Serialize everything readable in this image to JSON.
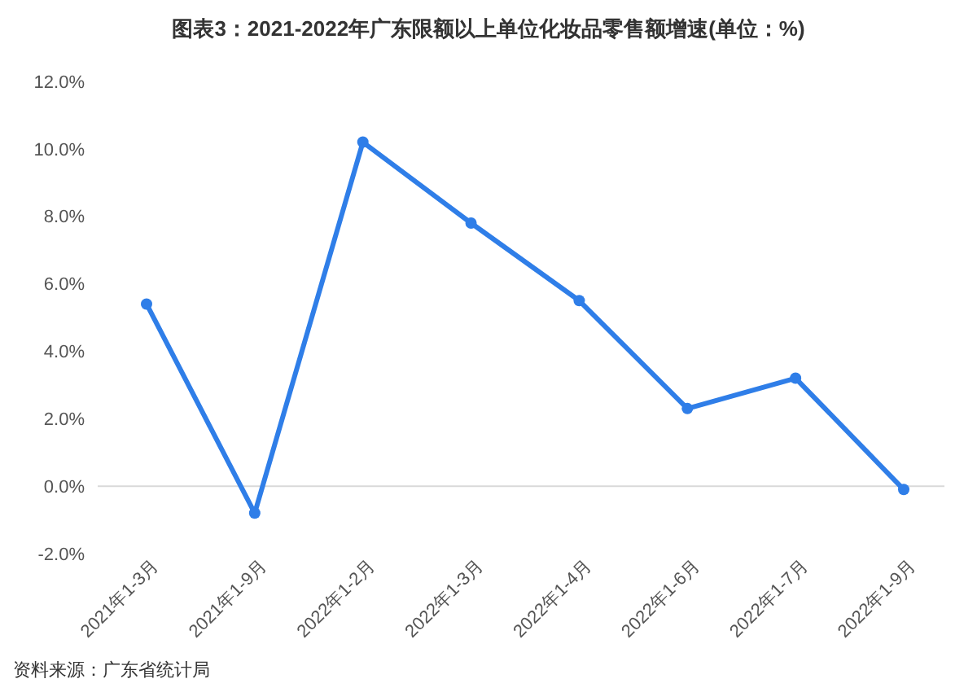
{
  "chart_data": {
    "type": "line",
    "title": "图表3：2021-2022年广东限额以上单位化妆品零售额增速(单位：%)",
    "categories": [
      "2021年1-3月",
      "2021年1-9月",
      "2022年1-2月",
      "2022年1-3月",
      "2022年1-4月",
      "2022年1-6月",
      "2022年1-7月",
      "2022年1-9月"
    ],
    "series": [
      {
        "color": "#2f7ee8",
        "values": [
          5.4,
          -0.8,
          10.2,
          7.8,
          5.5,
          2.3,
          3.2,
          -0.1
        ]
      }
    ],
    "ylim": [
      -2,
      12
    ],
    "yticks": [
      {
        "value": -2,
        "label": "-2.0%"
      },
      {
        "value": 0,
        "label": "0.0%"
      },
      {
        "value": 2,
        "label": "2.0%"
      },
      {
        "value": 4,
        "label": "4.0%"
      },
      {
        "value": 6,
        "label": "6.0%"
      },
      {
        "value": 8,
        "label": "8.0%"
      },
      {
        "value": 10,
        "label": "10.0%"
      },
      {
        "value": 12,
        "label": "12.0%"
      }
    ],
    "marker": "circle",
    "line_style": "solid",
    "annotations": [
      "资料来源：广东省统计局"
    ]
  }
}
